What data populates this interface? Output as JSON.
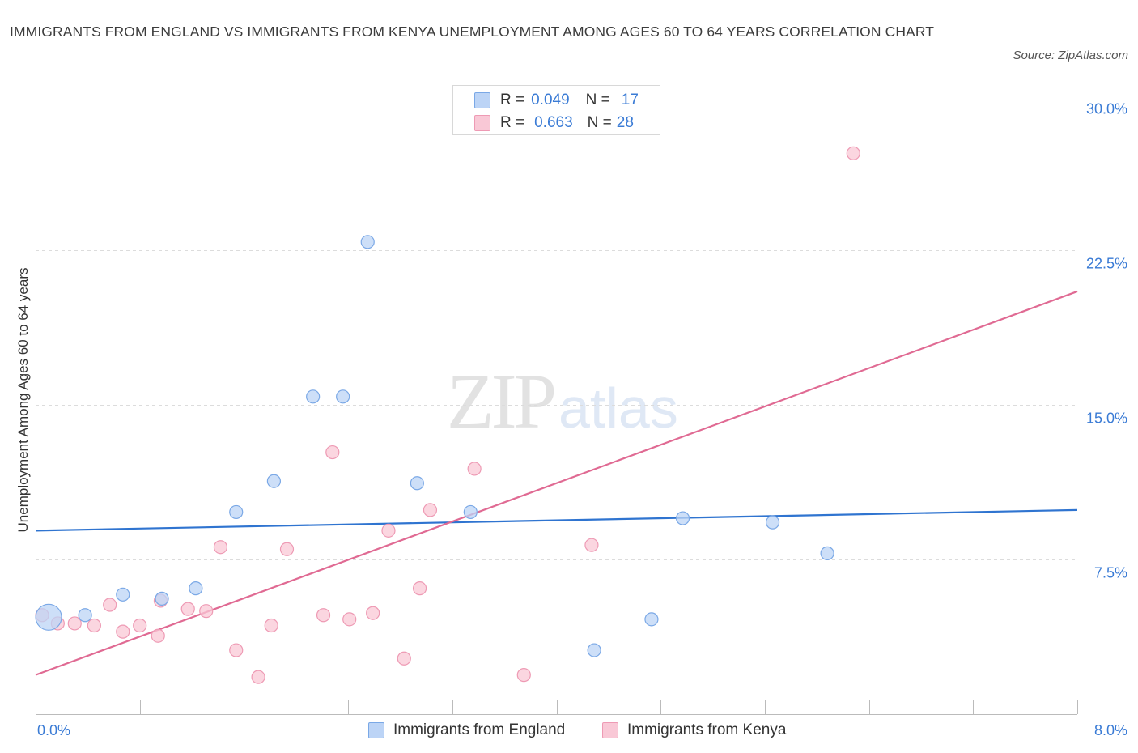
{
  "header": {
    "title": "IMMIGRANTS FROM ENGLAND VS IMMIGRANTS FROM KENYA UNEMPLOYMENT AMONG AGES 60 TO 64 YEARS CORRELATION CHART",
    "source": "Source: ZipAtlas.com"
  },
  "watermark": {
    "zip": "ZIP",
    "atlas": "atlas"
  },
  "legend": {
    "r_label": "R =",
    "n_label": "N =",
    "england": {
      "r": "0.049",
      "n": "17"
    },
    "kenya": {
      "r": "0.663",
      "n": "28"
    }
  },
  "colors": {
    "england_fill": "#bcd4f6",
    "england_stroke": "#7aa8e6",
    "england_line": "#2f74d0",
    "kenya_fill": "#f9c8d6",
    "kenya_stroke": "#ee9ab4",
    "kenya_line": "#e06a93",
    "tick_label": "#3a7bd5",
    "grid": "#dcdcdc"
  },
  "chart_data": {
    "type": "scatter",
    "title": "IMMIGRANTS FROM ENGLAND VS IMMIGRANTS FROM KENYA UNEMPLOYMENT AMONG AGES 60 TO 64 YEARS CORRELATION CHART",
    "xlabel": "",
    "ylabel": "Unemployment Among Ages 60 to 64 years",
    "xlim": [
      0,
      8
    ],
    "ylim": [
      0,
      30
    ],
    "x_tick_labels": [
      "0.0%",
      "8.0%"
    ],
    "y_ticks": [
      7.5,
      15,
      22.5,
      30
    ],
    "y_tick_labels": [
      "7.5%",
      "15.0%",
      "22.5%",
      "30.0%"
    ],
    "grid": "horizontal dashed",
    "legend_position": "top-center",
    "series": [
      {
        "name": "Immigrants from England",
        "r": 0.049,
        "n": 17,
        "points": [
          {
            "x": 0.1,
            "y": 4.7,
            "big": true
          },
          {
            "x": 0.38,
            "y": 4.8
          },
          {
            "x": 0.67,
            "y": 5.8
          },
          {
            "x": 0.97,
            "y": 5.6
          },
          {
            "x": 1.23,
            "y": 6.1
          },
          {
            "x": 1.54,
            "y": 9.8
          },
          {
            "x": 1.83,
            "y": 11.3
          },
          {
            "x": 2.13,
            "y": 15.4
          },
          {
            "x": 2.36,
            "y": 15.4
          },
          {
            "x": 2.55,
            "y": 22.9
          },
          {
            "x": 2.93,
            "y": 11.2
          },
          {
            "x": 3.34,
            "y": 9.8
          },
          {
            "x": 4.29,
            "y": 3.1
          },
          {
            "x": 4.73,
            "y": 4.6
          },
          {
            "x": 4.97,
            "y": 9.5
          },
          {
            "x": 5.66,
            "y": 9.3
          },
          {
            "x": 6.08,
            "y": 7.8
          }
        ],
        "trend": {
          "x": [
            0,
            8
          ],
          "y": [
            8.9,
            9.9
          ]
        }
      },
      {
        "name": "Immigrants from Kenya",
        "r": 0.663,
        "n": 28,
        "points": [
          {
            "x": 0.05,
            "y": 4.8
          },
          {
            "x": 0.17,
            "y": 4.4
          },
          {
            "x": 0.3,
            "y": 4.4
          },
          {
            "x": 0.45,
            "y": 4.3
          },
          {
            "x": 0.57,
            "y": 5.3
          },
          {
            "x": 0.67,
            "y": 4.0
          },
          {
            "x": 0.8,
            "y": 4.3
          },
          {
            "x": 0.94,
            "y": 3.8
          },
          {
            "x": 0.96,
            "y": 5.5
          },
          {
            "x": 1.17,
            "y": 5.1
          },
          {
            "x": 1.31,
            "y": 5.0
          },
          {
            "x": 1.42,
            "y": 8.1
          },
          {
            "x": 1.54,
            "y": 3.1
          },
          {
            "x": 1.71,
            "y": 1.8
          },
          {
            "x": 1.81,
            "y": 4.3
          },
          {
            "x": 1.93,
            "y": 8.0
          },
          {
            "x": 2.21,
            "y": 4.8
          },
          {
            "x": 2.28,
            "y": 12.7
          },
          {
            "x": 2.41,
            "y": 4.6
          },
          {
            "x": 2.59,
            "y": 4.9
          },
          {
            "x": 2.71,
            "y": 8.9
          },
          {
            "x": 2.83,
            "y": 2.7
          },
          {
            "x": 2.95,
            "y": 6.1
          },
          {
            "x": 3.03,
            "y": 9.9
          },
          {
            "x": 3.37,
            "y": 11.9
          },
          {
            "x": 3.75,
            "y": 1.9
          },
          {
            "x": 4.27,
            "y": 8.2
          },
          {
            "x": 6.28,
            "y": 27.2
          }
        ],
        "trend": {
          "x": [
            0,
            8
          ],
          "y": [
            1.9,
            20.5
          ]
        }
      }
    ]
  }
}
